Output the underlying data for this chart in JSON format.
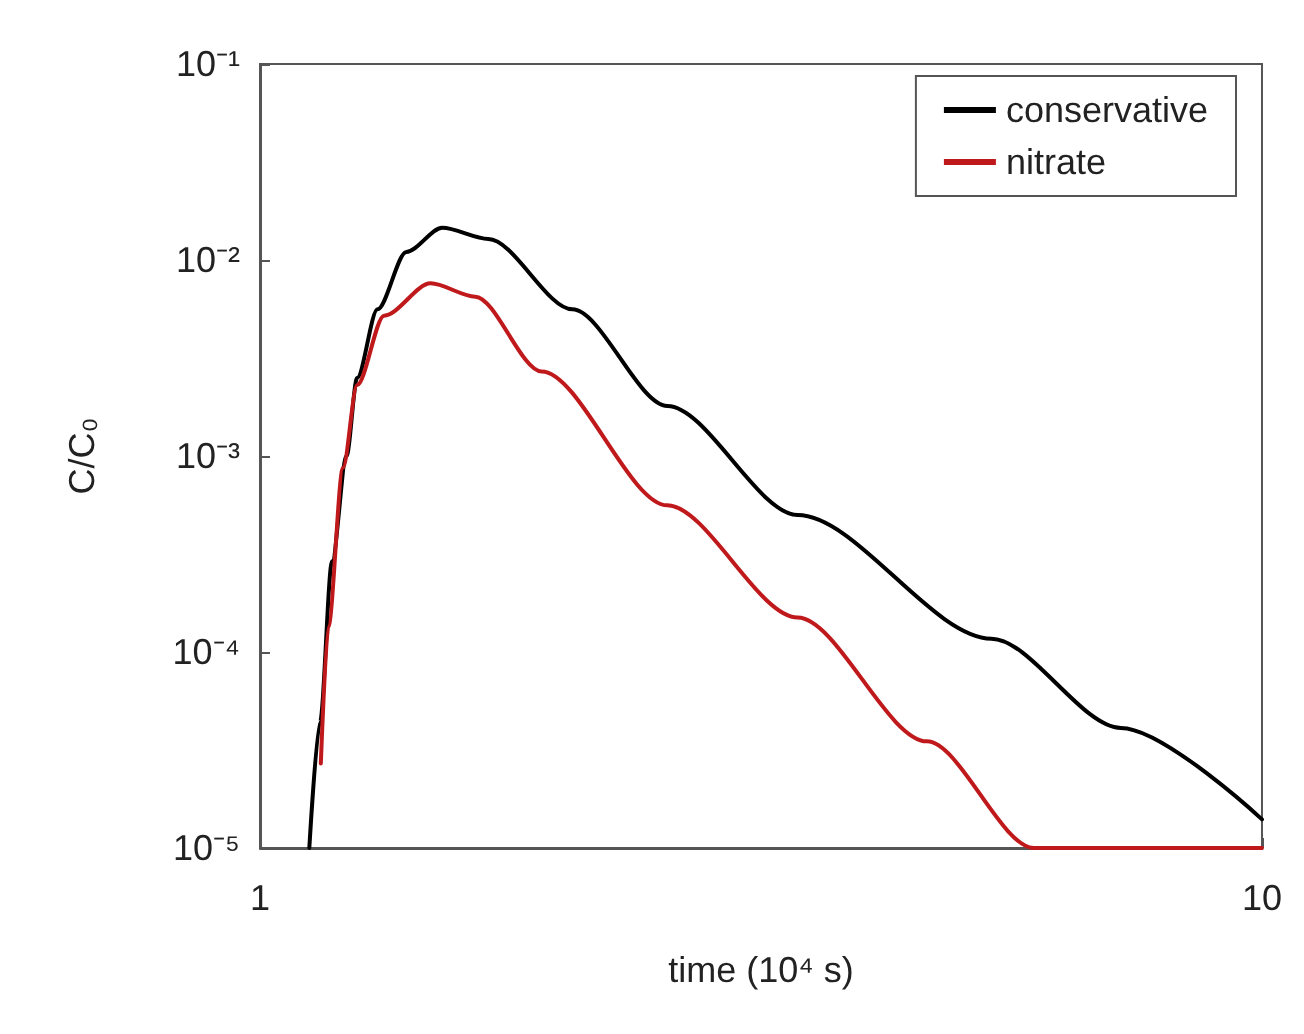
{
  "chart_data": {
    "type": "line",
    "xlabel": "time (10⁴ s)",
    "ylabel": "C/C₀",
    "log": "xy",
    "xlim": [
      1,
      10
    ],
    "xticks": [
      1,
      10
    ],
    "ylim": [
      1e-05,
      0.1
    ],
    "yticks": [
      {
        "value": 0.1,
        "label": "10⁻¹"
      },
      {
        "value": 0.01,
        "label": "10⁻²"
      },
      {
        "value": 0.001,
        "label": "10⁻³"
      },
      {
        "value": 0.0001,
        "label": "10⁻⁴"
      },
      {
        "value": 1e-05,
        "label": "10⁻⁵"
      }
    ],
    "grid": false,
    "legend": "top right",
    "marker": "none",
    "line_style": "solid",
    "series": [
      {
        "name": "conservative",
        "color": "#000000",
        "x": [
          1.12,
          1.148,
          1.18,
          1.22,
          1.25,
          1.31,
          1.4,
          1.52,
          1.69,
          2.05,
          2.55,
          3.44,
          5.37,
          7.23,
          10
        ],
        "values": [
          1e-05,
          4.4e-05,
          0.00029,
          0.001,
          0.0025,
          0.0056,
          0.011,
          0.0146,
          0.0128,
          0.0056,
          0.0018,
          0.0005,
          0.000117,
          4.1e-05,
          1.4e-05
        ]
      },
      {
        "name": "nitrate",
        "color": "#c0191c",
        "x": [
          1.15,
          1.17,
          1.21,
          1.25,
          1.33,
          1.48,
          1.64,
          1.91,
          2.55,
          3.44,
          4.63,
          5.92,
          10
        ],
        "values": [
          2.7e-05,
          0.000134,
          0.00087,
          0.0023,
          0.0052,
          0.0076,
          0.0065,
          0.0027,
          0.00056,
          0.00015,
          3.5e-05,
          1e-05,
          1e-05
        ]
      }
    ]
  }
}
